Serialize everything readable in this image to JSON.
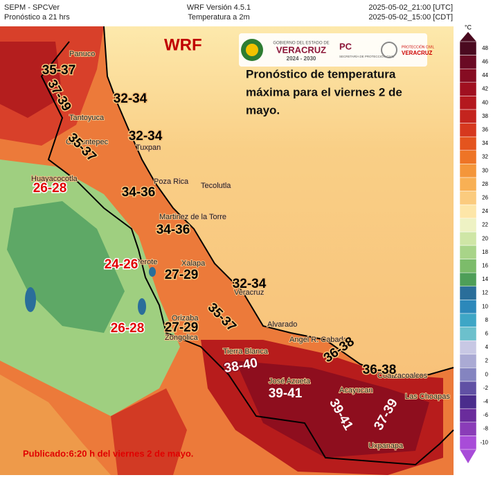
{
  "header": {
    "left": [
      "SEPM - SPCVer",
      "Pronóstico a 21 hrs"
    ],
    "center": [
      "WRF Versión 4.5.1",
      "Temperatura a 2m"
    ],
    "right": [
      "2025-05-02_21:00 [UTC]",
      "2025-05-02_15:00 [CDT]"
    ]
  },
  "logos": {
    "gobierno": "GOBIERNO DEL ESTADO DE",
    "veracruz": "VERACRUZ",
    "period": "2024 - 2030",
    "pc": "PC",
    "secretaria": "SECRETARÍA DE PROTECCIÓN CIVIL",
    "proteccion": "PROTECCIÓN CIVIL",
    "veracruz2": "VERACRUZ"
  },
  "map": {
    "model": "WRF",
    "description": [
      "Pronóstico de temperatura",
      "máxima para el viernes 2 de",
      "mayo."
    ],
    "places": [
      "Panuco",
      "Tantoyuca",
      "Tuxpan",
      "Chicontepec",
      "Huayacocotla",
      "Poza Rica",
      "Tecolutla",
      "Martinez de la Torre",
      "Perote",
      "Xalapa",
      "Veracruz",
      "Orizaba",
      "Zongolica",
      "Alvarado",
      "Angel R. Cabada",
      "Tierra Blanca",
      "José Azueta",
      "Acayucan",
      "Coatzacoalcos",
      "Las Choapas",
      "Uxpanapa"
    ],
    "forecasts": [
      {
        "text": "35-37",
        "color": "#000"
      },
      {
        "text": "37-39",
        "color": "#000"
      },
      {
        "text": "32-34",
        "color": "#000"
      },
      {
        "text": "32-34",
        "color": "#000"
      },
      {
        "text": "35-37",
        "color": "#000"
      },
      {
        "text": "26-28",
        "color": "#e00000"
      },
      {
        "text": "34-36",
        "color": "#000"
      },
      {
        "text": "34-36",
        "color": "#000"
      },
      {
        "text": "24-26",
        "color": "#e00000"
      },
      {
        "text": "27-29",
        "color": "#000"
      },
      {
        "text": "32-34",
        "color": "#000"
      },
      {
        "text": "35-37",
        "color": "#000"
      },
      {
        "text": "26-28",
        "color": "#e00000"
      },
      {
        "text": "27-29",
        "color": "#000"
      },
      {
        "text": "38-40",
        "color": "#fff"
      },
      {
        "text": "39-41",
        "color": "#fff"
      },
      {
        "text": "39-41",
        "color": "#fff"
      },
      {
        "text": "37-39",
        "color": "#fff"
      },
      {
        "text": "36-38",
        "color": "#000"
      },
      {
        "text": "36-38",
        "color": "#000"
      }
    ],
    "published": "Publicado:6:20 h del viernes 2 de mayo."
  },
  "colorbar": {
    "unit": "°C",
    "ticks": [
      48,
      46,
      44,
      42,
      40,
      38,
      36,
      34,
      32,
      30,
      28,
      26,
      24,
      22,
      20,
      18,
      16,
      14,
      12,
      10,
      8,
      6,
      4,
      2,
      0,
      -2,
      -4,
      -6,
      -8,
      -10
    ],
    "colors": [
      "#4a0a20",
      "#6a0a24",
      "#860c22",
      "#a01020",
      "#b4181e",
      "#c4241e",
      "#d6381e",
      "#e4541e",
      "#ee7426",
      "#f4963a",
      "#f8b054",
      "#fbcb7e",
      "#fde6a8",
      "#eef2c4",
      "#cfe6a6",
      "#a8d488",
      "#7cbc6a",
      "#4e9e58",
      "#2a6e9a",
      "#2c88ba",
      "#3ea6c6",
      "#6cc0cc",
      "#c8c8e4",
      "#aaaad4",
      "#8484c0",
      "#6050a4",
      "#4a2c8c",
      "#6a2c9c",
      "#8a3cb8",
      "#a84cd8"
    ]
  }
}
